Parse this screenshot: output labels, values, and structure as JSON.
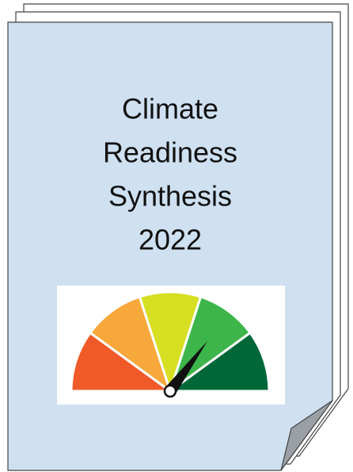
{
  "cover": {
    "title_lines": [
      "Climate",
      "Readiness",
      "Synthesis",
      "2022"
    ]
  }
}
